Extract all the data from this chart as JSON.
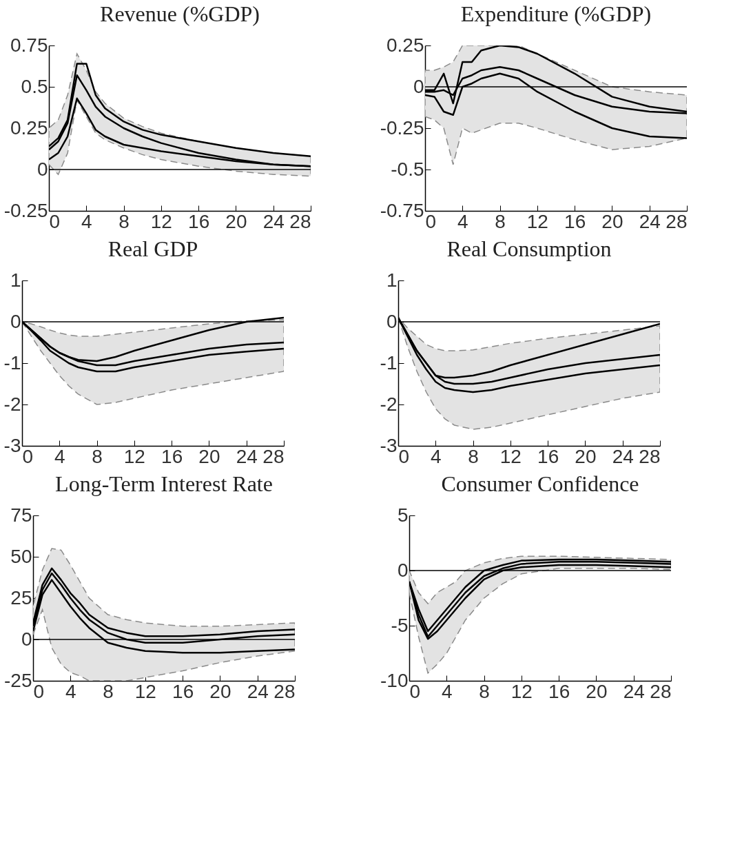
{
  "chart_data": [
    {
      "type": "line",
      "title": "Revenue (%GDP)",
      "x": [
        0,
        1,
        2,
        3,
        4,
        5,
        6,
        8,
        10,
        12,
        16,
        20,
        24,
        28
      ],
      "xlim": [
        0,
        28
      ],
      "xticks": [
        0,
        4,
        8,
        12,
        16,
        20,
        24,
        28
      ],
      "ylim": [
        -0.25,
        0.75
      ],
      "yticks": [
        -0.25,
        0,
        0.25,
        0.5,
        0.75
      ],
      "grid": false,
      "line_style": "solid",
      "ref_lines": [
        {
          "axis": "y",
          "value": 0,
          "color": "#000000"
        }
      ],
      "series": [
        {
          "color": "#000000",
          "values": [
            0.12,
            0.17,
            0.28,
            0.57,
            0.48,
            0.38,
            0.32,
            0.25,
            0.2,
            0.16,
            0.1,
            0.06,
            0.03,
            0.02
          ],
          "lower": [
            0.03,
            -0.03,
            0.1,
            0.42,
            0.32,
            0.22,
            0.18,
            0.13,
            0.09,
            0.06,
            0.02,
            -0.01,
            -0.03,
            -0.04
          ],
          "upper": [
            0.25,
            0.3,
            0.45,
            0.7,
            0.6,
            0.47,
            0.4,
            0.31,
            0.26,
            0.22,
            0.17,
            0.13,
            0.1,
            0.08
          ]
        },
        {
          "color": "#000000",
          "values": [
            0.14,
            0.19,
            0.3,
            0.64,
            0.64,
            0.45,
            0.37,
            0.29,
            0.24,
            0.21,
            0.17,
            0.13,
            0.1,
            0.08
          ]
        },
        {
          "color": "#000000",
          "values": [
            0.06,
            0.1,
            0.2,
            0.43,
            0.34,
            0.24,
            0.2,
            0.15,
            0.13,
            0.11,
            0.08,
            0.05,
            0.03,
            0.02
          ]
        }
      ]
    },
    {
      "type": "line",
      "title": "Expenditure (%GDP)",
      "x": [
        0,
        1,
        2,
        3,
        4,
        5,
        6,
        8,
        10,
        12,
        16,
        20,
        24,
        28
      ],
      "xlim": [
        0,
        28
      ],
      "xticks": [
        0,
        4,
        8,
        12,
        16,
        20,
        24,
        28
      ],
      "ylim": [
        -0.75,
        0.25
      ],
      "yticks": [
        -0.75,
        -0.5,
        -0.25,
        0,
        0.25
      ],
      "grid": false,
      "line_style": "solid",
      "ref_lines": [
        {
          "axis": "y",
          "value": 0,
          "color": "#000000"
        }
      ],
      "series": [
        {
          "color": "#000000",
          "values": [
            -0.03,
            -0.03,
            -0.02,
            -0.05,
            0.05,
            0.07,
            0.1,
            0.12,
            0.1,
            0.05,
            -0.05,
            -0.12,
            -0.15,
            -0.16
          ],
          "lower": [
            -0.18,
            -0.2,
            -0.25,
            -0.47,
            -0.25,
            -0.28,
            -0.26,
            -0.22,
            -0.22,
            -0.25,
            -0.32,
            -0.38,
            -0.36,
            -0.31
          ],
          "upper": [
            0.1,
            0.1,
            0.12,
            0.15,
            0.25,
            0.25,
            0.25,
            0.25,
            0.25,
            0.2,
            0.1,
            0.0,
            -0.03,
            -0.05
          ]
        },
        {
          "color": "#000000",
          "values": [
            -0.02,
            -0.02,
            0.08,
            -0.1,
            0.15,
            0.15,
            0.22,
            0.25,
            0.24,
            0.2,
            0.08,
            -0.06,
            -0.12,
            -0.15
          ]
        },
        {
          "color": "#000000",
          "values": [
            -0.05,
            -0.06,
            -0.15,
            -0.17,
            0.0,
            0.02,
            0.05,
            0.08,
            0.05,
            -0.03,
            -0.15,
            -0.25,
            -0.3,
            -0.31
          ]
        }
      ]
    },
    {
      "type": "line",
      "title": "Real GDP",
      "x": [
        0,
        1,
        2,
        3,
        4,
        5,
        6,
        8,
        10,
        12,
        16,
        20,
        24,
        28
      ],
      "xlim": [
        0,
        28
      ],
      "xticks": [
        0,
        4,
        8,
        12,
        16,
        20,
        24,
        28
      ],
      "ylim": [
        -3,
        1
      ],
      "yticks": [
        -3,
        -2,
        -1,
        0,
        1
      ],
      "grid": false,
      "line_style": "solid",
      "ref_lines": [
        {
          "axis": "y",
          "value": 0,
          "color": "#000000"
        }
      ],
      "series": [
        {
          "color": "#000000",
          "values": [
            0,
            -0.2,
            -0.4,
            -0.6,
            -0.75,
            -0.85,
            -0.95,
            -1.05,
            -1.05,
            -0.95,
            -0.8,
            -0.65,
            -0.55,
            -0.5
          ],
          "lower": [
            0,
            -0.35,
            -0.7,
            -1.0,
            -1.3,
            -1.55,
            -1.75,
            -2.0,
            -1.95,
            -1.85,
            -1.65,
            -1.5,
            -1.35,
            -1.2
          ],
          "upper": [
            0,
            -0.05,
            -0.12,
            -0.2,
            -0.27,
            -0.32,
            -0.35,
            -0.35,
            -0.3,
            -0.25,
            -0.15,
            -0.05,
            0.02,
            0.05
          ]
        },
        {
          "color": "#000000",
          "values": [
            0,
            -0.2,
            -0.4,
            -0.6,
            -0.75,
            -0.85,
            -0.92,
            -0.95,
            -0.85,
            -0.7,
            -0.45,
            -0.2,
            0.0,
            0.1
          ]
        },
        {
          "color": "#000000",
          "values": [
            0,
            -0.22,
            -0.45,
            -0.7,
            -0.85,
            -1.0,
            -1.1,
            -1.2,
            -1.2,
            -1.1,
            -0.95,
            -0.8,
            -0.72,
            -0.65
          ]
        }
      ]
    },
    {
      "type": "line",
      "title": "Real Consumption",
      "x": [
        0,
        1,
        2,
        3,
        4,
        5,
        6,
        8,
        10,
        12,
        16,
        20,
        24,
        28
      ],
      "xlim": [
        0,
        28
      ],
      "xticks": [
        0,
        4,
        8,
        12,
        16,
        20,
        24,
        28
      ],
      "ylim": [
        -3,
        1
      ],
      "yticks": [
        -3,
        -2,
        -1,
        0,
        1
      ],
      "grid": false,
      "line_style": "solid",
      "ref_lines": [
        {
          "axis": "y",
          "value": 0,
          "color": "#000000"
        }
      ],
      "series": [
        {
          "color": "#000000",
          "values": [
            0.1,
            -0.3,
            -0.7,
            -1.0,
            -1.3,
            -1.45,
            -1.5,
            -1.5,
            -1.45,
            -1.35,
            -1.15,
            -1.0,
            -0.9,
            -0.8
          ],
          "lower": [
            0.1,
            -0.6,
            -1.2,
            -1.7,
            -2.1,
            -2.35,
            -2.5,
            -2.6,
            -2.55,
            -2.45,
            -2.25,
            -2.05,
            -1.85,
            -1.7
          ],
          "upper": [
            0.1,
            -0.15,
            -0.35,
            -0.55,
            -0.65,
            -0.7,
            -0.7,
            -0.68,
            -0.6,
            -0.52,
            -0.4,
            -0.3,
            -0.2,
            -0.1
          ]
        },
        {
          "color": "#000000",
          "values": [
            0.1,
            -0.3,
            -0.7,
            -1.0,
            -1.3,
            -1.35,
            -1.35,
            -1.3,
            -1.2,
            -1.05,
            -0.8,
            -0.55,
            -0.3,
            -0.05
          ]
        },
        {
          "color": "#000000",
          "values": [
            0.1,
            -0.35,
            -0.8,
            -1.15,
            -1.45,
            -1.6,
            -1.65,
            -1.7,
            -1.65,
            -1.55,
            -1.4,
            -1.25,
            -1.15,
            -1.05
          ]
        }
      ]
    },
    {
      "type": "line",
      "title": "Long-Term Interest Rate",
      "x": [
        0,
        1,
        2,
        3,
        4,
        5,
        6,
        8,
        10,
        12,
        16,
        20,
        24,
        28
      ],
      "xlim": [
        0,
        28
      ],
      "xticks": [
        0,
        4,
        8,
        12,
        16,
        20,
        24,
        28
      ],
      "ylim": [
        -25,
        75
      ],
      "yticks": [
        -25,
        0,
        25,
        50,
        75
      ],
      "grid": false,
      "line_style": "solid",
      "ref_lines": [
        {
          "axis": "y",
          "value": 0,
          "color": "#000000"
        }
      ],
      "series": [
        {
          "color": "#000000",
          "values": [
            8,
            30,
            40,
            33,
            25,
            18,
            12,
            4,
            0,
            -2,
            -2,
            0,
            2,
            3
          ],
          "lower": [
            3,
            18,
            -5,
            -15,
            -20,
            -22,
            -25,
            -25,
            -25,
            -23,
            -19,
            -14,
            -10,
            -7
          ],
          "upper": [
            20,
            42,
            55,
            54,
            45,
            35,
            25,
            15,
            12,
            10,
            8,
            8,
            9,
            10
          ]
        },
        {
          "color": "#000000",
          "values": [
            10,
            33,
            43,
            36,
            28,
            22,
            15,
            7,
            4,
            2,
            2,
            3,
            5,
            6
          ]
        },
        {
          "color": "#000000",
          "values": [
            5,
            27,
            36,
            28,
            20,
            13,
            7,
            -2,
            -5,
            -7,
            -8,
            -8,
            -7,
            -6
          ]
        }
      ]
    },
    {
      "type": "line",
      "title": "Consumer Confidence",
      "x": [
        0,
        1,
        2,
        3,
        4,
        5,
        6,
        8,
        10,
        12,
        16,
        20,
        24,
        28
      ],
      "xlim": [
        0,
        28
      ],
      "xticks": [
        0,
        4,
        8,
        12,
        16,
        20,
        24,
        28
      ],
      "ylim": [
        -10,
        5
      ],
      "yticks": [
        -10,
        -5,
        0,
        5
      ],
      "grid": false,
      "line_style": "solid",
      "ref_lines": [
        {
          "axis": "y",
          "value": 0,
          "color": "#000000"
        }
      ],
      "series": [
        {
          "color": "#000000",
          "values": [
            -1,
            -4,
            -6,
            -5,
            -4,
            -3,
            -2,
            -0.5,
            0.2,
            0.6,
            0.8,
            0.8,
            0.7,
            0.6
          ],
          "lower": [
            -2,
            -6,
            -9.3,
            -8.5,
            -7.5,
            -6,
            -4.5,
            -2.5,
            -1.2,
            -0.3,
            0.2,
            0.2,
            0.2,
            0.1
          ],
          "upper": [
            0,
            -2,
            -3,
            -2,
            -1.5,
            -1,
            0,
            0.7,
            1.1,
            1.3,
            1.3,
            1.2,
            1.1,
            1.0
          ]
        },
        {
          "color": "#000000",
          "values": [
            -1,
            -3.5,
            -5.5,
            -4.5,
            -3.5,
            -2.5,
            -1.5,
            0,
            0.5,
            0.9,
            1.0,
            1.0,
            0.9,
            0.8
          ]
        },
        {
          "color": "#000000",
          "values": [
            -1,
            -4.5,
            -6.2,
            -5.5,
            -4.5,
            -3.5,
            -2.5,
            -0.8,
            0,
            0.3,
            0.5,
            0.5,
            0.4,
            0.3
          ]
        }
      ]
    }
  ]
}
